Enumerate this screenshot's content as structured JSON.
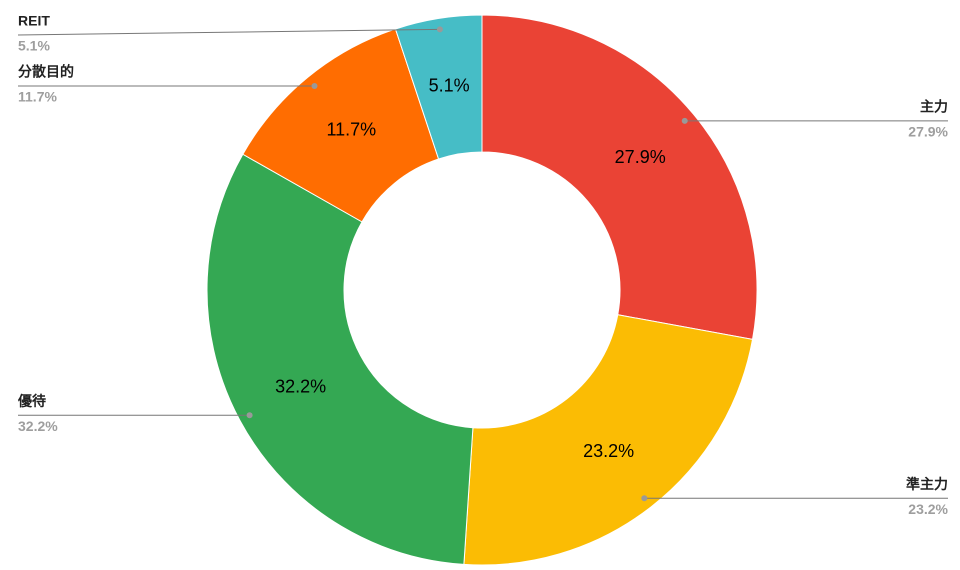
{
  "chart_data": {
    "type": "donut",
    "categories": [
      "主力",
      "準主力",
      "優待",
      "分散目的",
      "REIT"
    ],
    "values": [
      27.9,
      23.2,
      32.2,
      11.7,
      5.1
    ],
    "value_labels": [
      "27.9%",
      "23.2%",
      "32.2%",
      "11.7%",
      "5.1%"
    ],
    "colors": [
      "#ea4335",
      "#fbbc04",
      "#34a853",
      "#ff6d01",
      "#46bdc6"
    ]
  }
}
